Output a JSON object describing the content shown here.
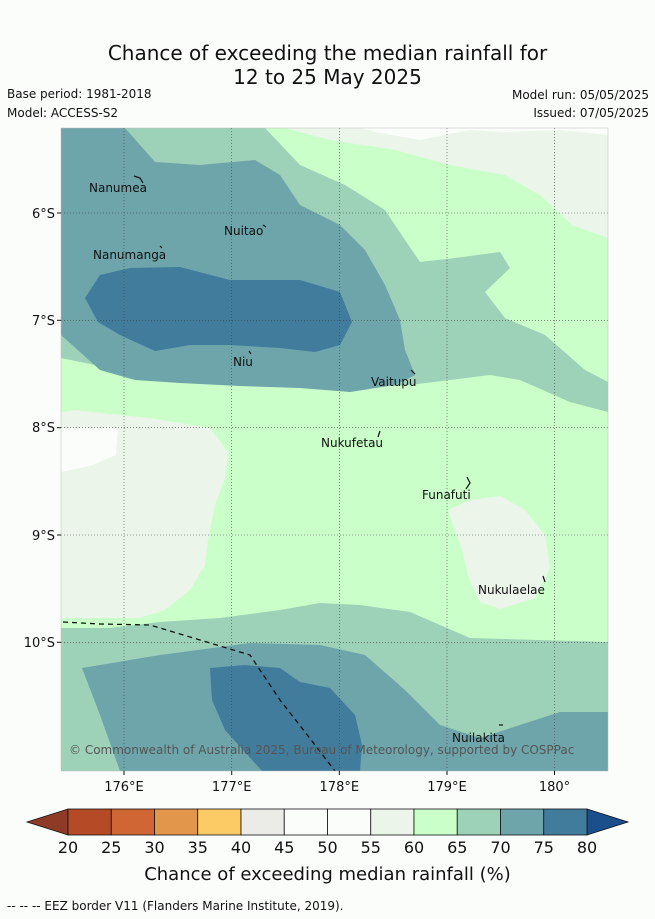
{
  "title": {
    "line1": "Chance of exceeding the median rainfall for",
    "line2": "12 to 25 May 2025"
  },
  "meta": {
    "base_period": "Base period: 1981-2018",
    "model": "Model: ACCESS-S2",
    "model_run": "Model run: 05/05/2025",
    "issued": "Issued: 07/05/2025"
  },
  "places": {
    "nanumea": "Nanumea",
    "nuitao": "Nuitao",
    "nanumanga": "Nanumanga",
    "niu": "Niu",
    "vaitupu": "Vaitupu",
    "nukufetau": "Nukufetau",
    "funafuti": "Funafuti",
    "nukulaelae": "Nukulaelae",
    "nuilakita": "Nuilakita"
  },
  "axes": {
    "lat_ticks": [
      "6°S",
      "7°S",
      "8°S",
      "9°S",
      "10°S"
    ],
    "lon_ticks": [
      "176°E",
      "177°E",
      "178°E",
      "179°E",
      "180°"
    ]
  },
  "credit": "© Commonwealth of Australia 2025, Bureau of Meteorology, supported by COSPPac",
  "colorbar": {
    "label": "Chance of exceeding median rainfall (%)",
    "ticks": [
      "20",
      "25",
      "30",
      "35",
      "40",
      "45",
      "50",
      "55",
      "60",
      "65",
      "70",
      "75",
      "80"
    ],
    "colors": [
      "#b54a26",
      "#d06634",
      "#e2964c",
      "#fccb66",
      "#ebebe8",
      "#fbfdfb",
      "#fbfdfb",
      "#ebf5ea",
      "#caffc9",
      "#9dd1b8",
      "#6da5ab",
      "#427c9c"
    ],
    "under_color": "#8f3a26",
    "over_color": "#1a4f8c"
  },
  "footer": "-- -- -- EEZ border V11 (Flanders Marine Institute, 2019)."
}
